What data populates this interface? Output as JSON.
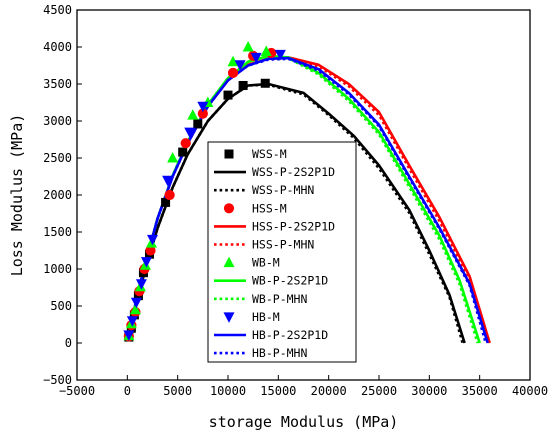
{
  "chart_data": {
    "type": "scatter",
    "xlabel": "storage Modulus (MPa)",
    "ylabel": "Loss Modulus (MPa)",
    "xlim": [
      -5000,
      40000
    ],
    "ylim": [
      -500,
      4500
    ],
    "xticks": [
      -5000,
      0,
      5000,
      10000,
      15000,
      20000,
      25000,
      30000,
      35000,
      40000
    ],
    "yticks": [
      -500,
      0,
      500,
      1000,
      1500,
      2000,
      2500,
      3000,
      3500,
      4000,
      4500
    ],
    "xtick_labels": [
      "−5000",
      "0",
      "5000",
      "10000",
      "15000",
      "20000",
      "25000",
      "30000",
      "35000",
      "40000"
    ],
    "ytick_labels": [
      "−500",
      "0",
      "500",
      "1000",
      "1500",
      "2000",
      "2500",
      "3000",
      "3500",
      "4000",
      "4500"
    ],
    "grid": false,
    "legend_position": "center",
    "series": [
      {
        "name": "WSS-M",
        "kind": "markers",
        "marker": "square",
        "color": "#000000",
        "x": [
          150,
          400,
          700,
          1100,
          1600,
          2200,
          3800,
          5500,
          7000,
          10000,
          11500,
          13700
        ],
        "y": [
          80,
          200,
          380,
          640,
          950,
          1200,
          1900,
          2580,
          2960,
          3350,
          3480,
          3510
        ]
      },
      {
        "name": "WSS-P-2S2P1D",
        "kind": "line",
        "dash": "solid",
        "color": "#000000",
        "x": [
          100,
          500,
          1000,
          2000,
          3000,
          4500,
          6000,
          8000,
          10000,
          12000,
          14000,
          17500,
          20000,
          22500,
          25000,
          28000,
          30000,
          32000,
          33500
        ],
        "y": [
          30,
          300,
          600,
          1100,
          1550,
          2100,
          2550,
          3000,
          3300,
          3480,
          3500,
          3380,
          3100,
          2800,
          2400,
          1800,
          1250,
          650,
          0
        ]
      },
      {
        "name": "WSS-P-MHN",
        "kind": "line",
        "dash": "dotted",
        "color": "#000000",
        "x": [
          100,
          500,
          1000,
          2000,
          3000,
          4500,
          6000,
          8000,
          10000,
          12000,
          14000,
          17500,
          20000,
          22500,
          25000,
          28000,
          30000,
          32000,
          33300
        ],
        "y": [
          30,
          300,
          600,
          1100,
          1550,
          2100,
          2550,
          3000,
          3300,
          3480,
          3490,
          3360,
          3080,
          2770,
          2360,
          1760,
          1200,
          620,
          0
        ]
      },
      {
        "name": "HSS-M",
        "kind": "markers",
        "marker": "circle",
        "color": "#ff0000",
        "x": [
          150,
          400,
          800,
          1200,
          1700,
          2300,
          4200,
          5800,
          7500,
          10500,
          12500,
          14300
        ],
        "y": [
          90,
          240,
          420,
          700,
          1000,
          1250,
          2000,
          2700,
          3100,
          3650,
          3880,
          3920
        ]
      },
      {
        "name": "HSS-P-2S2P1D",
        "kind": "line",
        "dash": "solid",
        "color": "#ff0000",
        "x": [
          100,
          500,
          1000,
          2000,
          3000,
          4500,
          6000,
          8000,
          10000,
          12000,
          14000,
          16000,
          19000,
          22000,
          25000,
          28000,
          31000,
          34000,
          36000
        ],
        "y": [
          40,
          320,
          650,
          1180,
          1680,
          2250,
          2700,
          3200,
          3550,
          3760,
          3840,
          3860,
          3760,
          3500,
          3120,
          2400,
          1700,
          900,
          0
        ]
      },
      {
        "name": "HSS-P-MHN",
        "kind": "line",
        "dash": "dotted",
        "color": "#ff0000",
        "x": [
          100,
          500,
          1000,
          2000,
          3000,
          4500,
          6000,
          8000,
          10000,
          12000,
          14000,
          16000,
          19000,
          22000,
          25000,
          28000,
          31000,
          34000,
          35800
        ],
        "y": [
          40,
          320,
          650,
          1180,
          1680,
          2250,
          2700,
          3200,
          3550,
          3760,
          3840,
          3850,
          3740,
          3470,
          3080,
          2360,
          1650,
          860,
          0
        ]
      },
      {
        "name": "WB-M",
        "kind": "markers",
        "marker": "triangle-up",
        "color": "#00ff00",
        "x": [
          150,
          400,
          800,
          1300,
          1800,
          2400,
          4500,
          6500,
          8000,
          10500,
          12000,
          13800
        ],
        "y": [
          100,
          260,
          450,
          760,
          1050,
          1350,
          2500,
          3080,
          3250,
          3800,
          4000,
          3940
        ]
      },
      {
        "name": "WB-P-2S2P1D",
        "kind": "line",
        "dash": "solid",
        "color": "#00ff00",
        "x": [
          100,
          500,
          1000,
          2000,
          3000,
          4500,
          6000,
          8000,
          10000,
          12000,
          14000,
          16000,
          19000,
          22000,
          25000,
          28000,
          31000,
          33000,
          35000
        ],
        "y": [
          40,
          320,
          650,
          1180,
          1680,
          2260,
          2720,
          3220,
          3580,
          3800,
          3880,
          3860,
          3650,
          3300,
          2850,
          2150,
          1450,
          850,
          0
        ]
      },
      {
        "name": "WB-P-MHN",
        "kind": "line",
        "dash": "dotted",
        "color": "#00ff00",
        "x": [
          100,
          500,
          1000,
          2000,
          3000,
          4500,
          6000,
          8000,
          10000,
          12000,
          14000,
          16000,
          19000,
          22000,
          25000,
          28000,
          31000,
          33000,
          34800
        ],
        "y": [
          40,
          320,
          650,
          1180,
          1680,
          2260,
          2720,
          3220,
          3580,
          3800,
          3870,
          3850,
          3630,
          3270,
          2820,
          2110,
          1400,
          800,
          0
        ]
      },
      {
        "name": "HB-M",
        "kind": "markers",
        "marker": "triangle-down",
        "color": "#0000ff",
        "x": [
          150,
          500,
          900,
          1400,
          1900,
          2500,
          4000,
          6200,
          7500,
          11200,
          12800,
          15200
        ],
        "y": [
          110,
          300,
          550,
          800,
          1100,
          1400,
          2200,
          2850,
          3200,
          3760,
          3860,
          3900
        ]
      },
      {
        "name": "HB-P-2S2P1D",
        "kind": "line",
        "dash": "solid",
        "color": "#0000ff",
        "x": [
          100,
          500,
          1000,
          2000,
          3000,
          4500,
          6000,
          8000,
          10000,
          12000,
          14000,
          16000,
          19000,
          22000,
          25000,
          28000,
          31000,
          34000,
          35800
        ],
        "y": [
          40,
          320,
          650,
          1180,
          1680,
          2250,
          2700,
          3200,
          3550,
          3750,
          3840,
          3850,
          3700,
          3380,
          2950,
          2250,
          1560,
          800,
          0
        ]
      },
      {
        "name": "HB-P-MHN",
        "kind": "line",
        "dash": "dotted",
        "color": "#0000ff",
        "x": [
          100,
          500,
          1000,
          2000,
          3000,
          4500,
          6000,
          8000,
          10000,
          12000,
          14000,
          16000,
          19000,
          22000,
          25000,
          28000,
          31000,
          34000,
          35600
        ],
        "y": [
          40,
          320,
          650,
          1180,
          1680,
          2250,
          2700,
          3200,
          3550,
          3750,
          3830,
          3840,
          3680,
          3360,
          2930,
          2230,
          1540,
          780,
          0
        ]
      }
    ]
  }
}
